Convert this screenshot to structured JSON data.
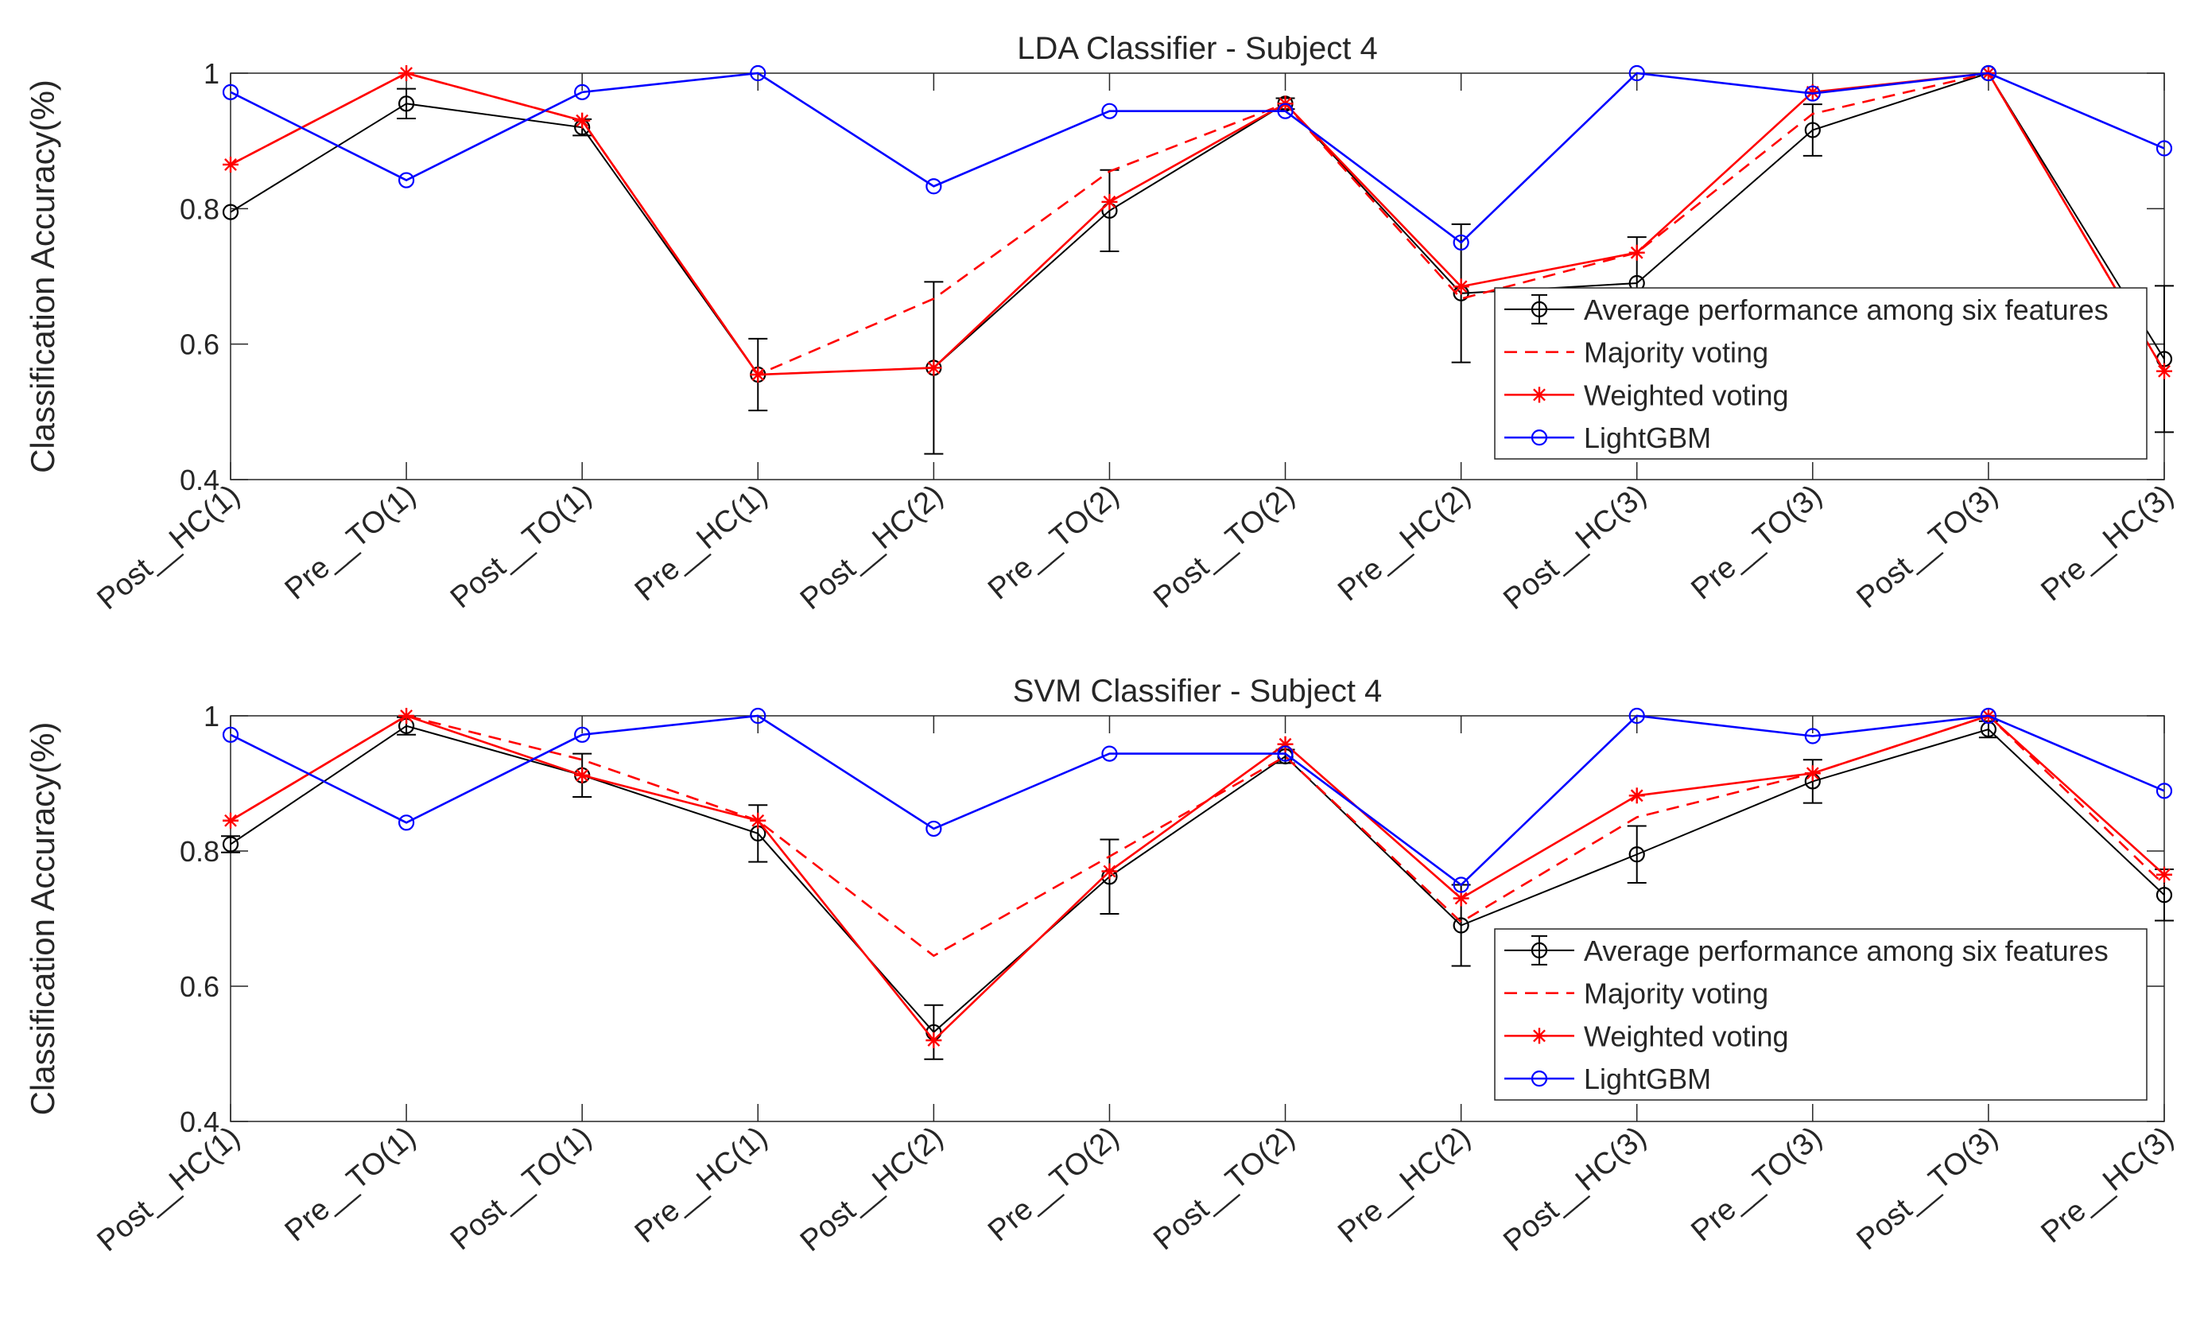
{
  "chart_data": [
    {
      "type": "line",
      "title": "LDA Classifier - Subject 4",
      "xlabel": "",
      "ylabel": "Classification Accuracy(%)",
      "ylim": [
        0.4,
        1.0
      ],
      "yticks": [
        "0.4",
        "0.6",
        "0.8",
        "1"
      ],
      "grid": false,
      "legend_position": "bottom-right",
      "categories": [
        "Post__HC(1)",
        "Pre__TO(1)",
        "Post__TO(1)",
        "Pre__HC(1)",
        "Post__HC(2)",
        "Pre__TO(2)",
        "Post__TO(2)",
        "Pre__HC(2)",
        "Post__HC(3)",
        "Pre__TO(3)",
        "Post__TO(3)",
        "Pre__HC(3)"
      ],
      "series": [
        {
          "name": "Average performance among six features",
          "color": "#000000",
          "style": "solid",
          "marker": "circle",
          "values": [
            0.795,
            0.955,
            0.92,
            0.555,
            0.565,
            0.797,
            0.955,
            0.675,
            0.69,
            0.916,
            1.0,
            0.578
          ],
          "error": [
            0.0,
            0.022,
            0.012,
            0.053,
            0.127,
            0.06,
            0.008,
            0.102,
            0.068,
            0.038,
            0.0,
            0.108
          ]
        },
        {
          "name": "Majority voting",
          "color": "#ff0000",
          "style": "dashed",
          "marker": "none",
          "values": [
            0.865,
            1.0,
            0.93,
            0.555,
            0.667,
            0.855,
            0.955,
            0.667,
            0.735,
            0.94,
            1.0,
            0.56
          ]
        },
        {
          "name": "Weighted voting",
          "color": "#ff0000",
          "style": "solid",
          "marker": "star",
          "values": [
            0.865,
            1.0,
            0.93,
            0.555,
            0.565,
            0.81,
            0.955,
            0.685,
            0.735,
            0.972,
            1.0,
            0.56
          ]
        },
        {
          "name": "LightGBM",
          "color": "#0000ff",
          "style": "solid",
          "marker": "circle",
          "values": [
            0.972,
            0.842,
            0.972,
            1.0,
            0.833,
            0.944,
            0.944,
            0.75,
            1.0,
            0.97,
            1.0,
            0.889
          ]
        }
      ]
    },
    {
      "type": "line",
      "title": "SVM Classifier - Subject 4",
      "xlabel": "",
      "ylabel": "Classification Accuracy(%)",
      "ylim": [
        0.4,
        1.0
      ],
      "yticks": [
        "0.4",
        "0.6",
        "0.8",
        "1"
      ],
      "grid": false,
      "legend_position": "bottom-right",
      "categories": [
        "Post__HC(1)",
        "Pre__TO(1)",
        "Post__TO(1)",
        "Pre__HC(1)",
        "Post__HC(2)",
        "Pre__TO(2)",
        "Post__TO(2)",
        "Pre__HC(2)",
        "Post__HC(3)",
        "Pre__TO(3)",
        "Post__TO(3)",
        "Pre__HC(3)"
      ],
      "series": [
        {
          "name": "Average performance among six features",
          "color": "#000000",
          "style": "solid",
          "marker": "circle",
          "values": [
            0.81,
            0.985,
            0.912,
            0.826,
            0.532,
            0.762,
            0.94,
            0.69,
            0.795,
            0.903,
            0.98,
            0.735
          ],
          "error": [
            0.012,
            0.013,
            0.032,
            0.042,
            0.04,
            0.055,
            0.01,
            0.06,
            0.042,
            0.032,
            0.012,
            0.038
          ]
        },
        {
          "name": "Majority voting",
          "color": "#ff0000",
          "style": "dashed",
          "marker": "none",
          "values": [
            0.845,
            1.0,
            0.935,
            0.845,
            0.645,
            0.792,
            0.94,
            0.695,
            0.85,
            0.915,
            1.0,
            0.75
          ]
        },
        {
          "name": "Weighted voting",
          "color": "#ff0000",
          "style": "solid",
          "marker": "star",
          "values": [
            0.845,
            1.0,
            0.912,
            0.845,
            0.52,
            0.77,
            0.958,
            0.73,
            0.882,
            0.915,
            1.0,
            0.765
          ]
        },
        {
          "name": "LightGBM",
          "color": "#0000ff",
          "style": "solid",
          "marker": "circle",
          "values": [
            0.972,
            0.842,
            0.972,
            1.0,
            0.833,
            0.944,
            0.944,
            0.75,
            1.0,
            0.97,
            1.0,
            0.889
          ]
        }
      ]
    }
  ]
}
